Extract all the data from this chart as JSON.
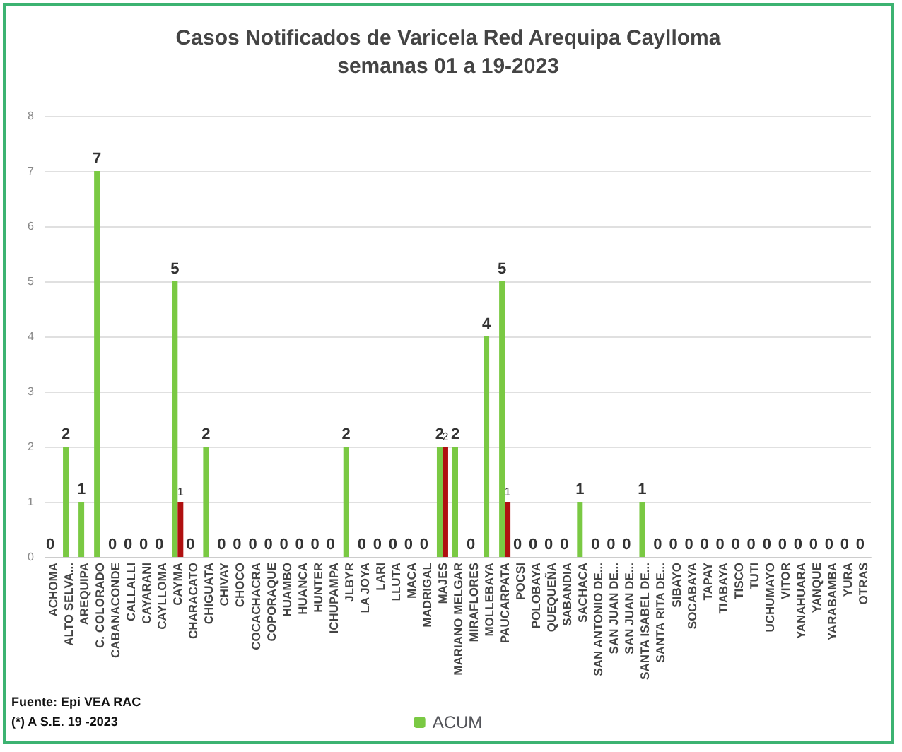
{
  "chart_data": {
    "type": "bar",
    "title": "Casos Notificados de Varicela Red Arequipa Caylloma\nsemanas 01 a 19-2023",
    "categories": [
      "ACHOMA",
      "ALTO SELVA...",
      "AREQUIPA",
      "C. COLORADO",
      "CABANACONDE",
      "CALLALLI",
      "CAYARANI",
      "CAYLLOMA",
      "CAYMA",
      "CHARACATO",
      "CHIGUATA",
      "CHIVAY",
      "CHOCO",
      "COCACHACRA",
      "COPORAQUE",
      "HUAMBO",
      "HUANCA",
      "HUNTER",
      "ICHUPAMPA",
      "JLBYR",
      "LA JOYA",
      "LARI",
      "LLUTA",
      "MACA",
      "MADRIGAL",
      "MAJES",
      "MARIANO MELGAR",
      "MIRAFLORES",
      "MOLLEBAYA",
      "PAUCARPATA",
      "POCSI",
      "POLOBAYA",
      "QUEQUEÑA",
      "SABANDIA",
      "SACHACA",
      "SAN ANTONIO DE...",
      "SAN JUAN DE...",
      "SAN JUAN DE...",
      "SANTA ISABEL DE...",
      "SANTA RITA DE...",
      "SIBAYO",
      "SOCABAYA",
      "TAPAY",
      "TIABAYA",
      "TISCO",
      "TUTI",
      "UCHUMAYO",
      "VITOR",
      "YANAHUARA",
      "YANQUE",
      "YARABAMBA",
      "YURA",
      "OTRAS"
    ],
    "series": [
      {
        "name": "ACUM",
        "color": "#7ac943",
        "values": [
          0,
          2,
          1,
          7,
          0,
          0,
          0,
          0,
          5,
          0,
          2,
          0,
          0,
          0,
          0,
          0,
          0,
          0,
          0,
          2,
          0,
          0,
          0,
          0,
          0,
          2,
          2,
          0,
          4,
          5,
          0,
          0,
          0,
          0,
          1,
          0,
          0,
          0,
          1,
          0,
          0,
          0,
          0,
          0,
          0,
          0,
          0,
          0,
          0,
          0,
          0,
          0,
          0
        ],
        "value_labels": [
          "0",
          "2",
          "1",
          "7",
          "0",
          "0",
          "0",
          "0",
          "5",
          "0",
          "2",
          "0",
          "0",
          "0",
          "0",
          "0",
          "0",
          "0",
          "0",
          "2",
          "0",
          "0",
          "0",
          "0",
          "0",
          "2",
          "2",
          "0",
          "4",
          "5",
          "0",
          "0",
          "0",
          "0",
          "1",
          "0",
          "0",
          "0",
          "1",
          "0",
          "0",
          "0",
          "0",
          "0",
          "0",
          "0",
          "0",
          "0",
          "0",
          "0",
          "0",
          "0",
          "0"
        ]
      },
      {
        "color": "#b01010",
        "values": [
          0,
          0,
          0,
          0,
          0,
          0,
          0,
          0,
          1,
          0,
          0,
          0,
          0,
          0,
          0,
          0,
          0,
          0,
          0,
          0,
          0,
          0,
          0,
          0,
          0,
          2,
          0,
          0,
          0,
          1,
          0,
          0,
          0,
          0,
          0,
          0,
          0,
          0,
          0,
          0,
          0,
          0,
          0,
          0,
          0,
          0,
          0,
          0,
          0,
          0,
          0,
          0,
          0
        ],
        "value_labels": [
          null,
          null,
          null,
          null,
          null,
          null,
          null,
          null,
          "1",
          null,
          null,
          null,
          null,
          null,
          null,
          null,
          null,
          null,
          null,
          null,
          null,
          null,
          null,
          null,
          null,
          "2",
          null,
          null,
          null,
          "1",
          null,
          null,
          null,
          null,
          null,
          null,
          null,
          null,
          null,
          null,
          null,
          null,
          null,
          null,
          null,
          null,
          null,
          null,
          null,
          null,
          null,
          null,
          null
        ]
      }
    ],
    "ylim": [
      0,
      8
    ],
    "yticks": [
      0,
      1,
      2,
      3,
      4,
      5,
      6,
      7,
      8
    ],
    "grid": "y",
    "legend": "bottom",
    "annotations": [
      "Fuente: Epi VEA RAC",
      "(*) A S.E. 19 -2023"
    ]
  }
}
